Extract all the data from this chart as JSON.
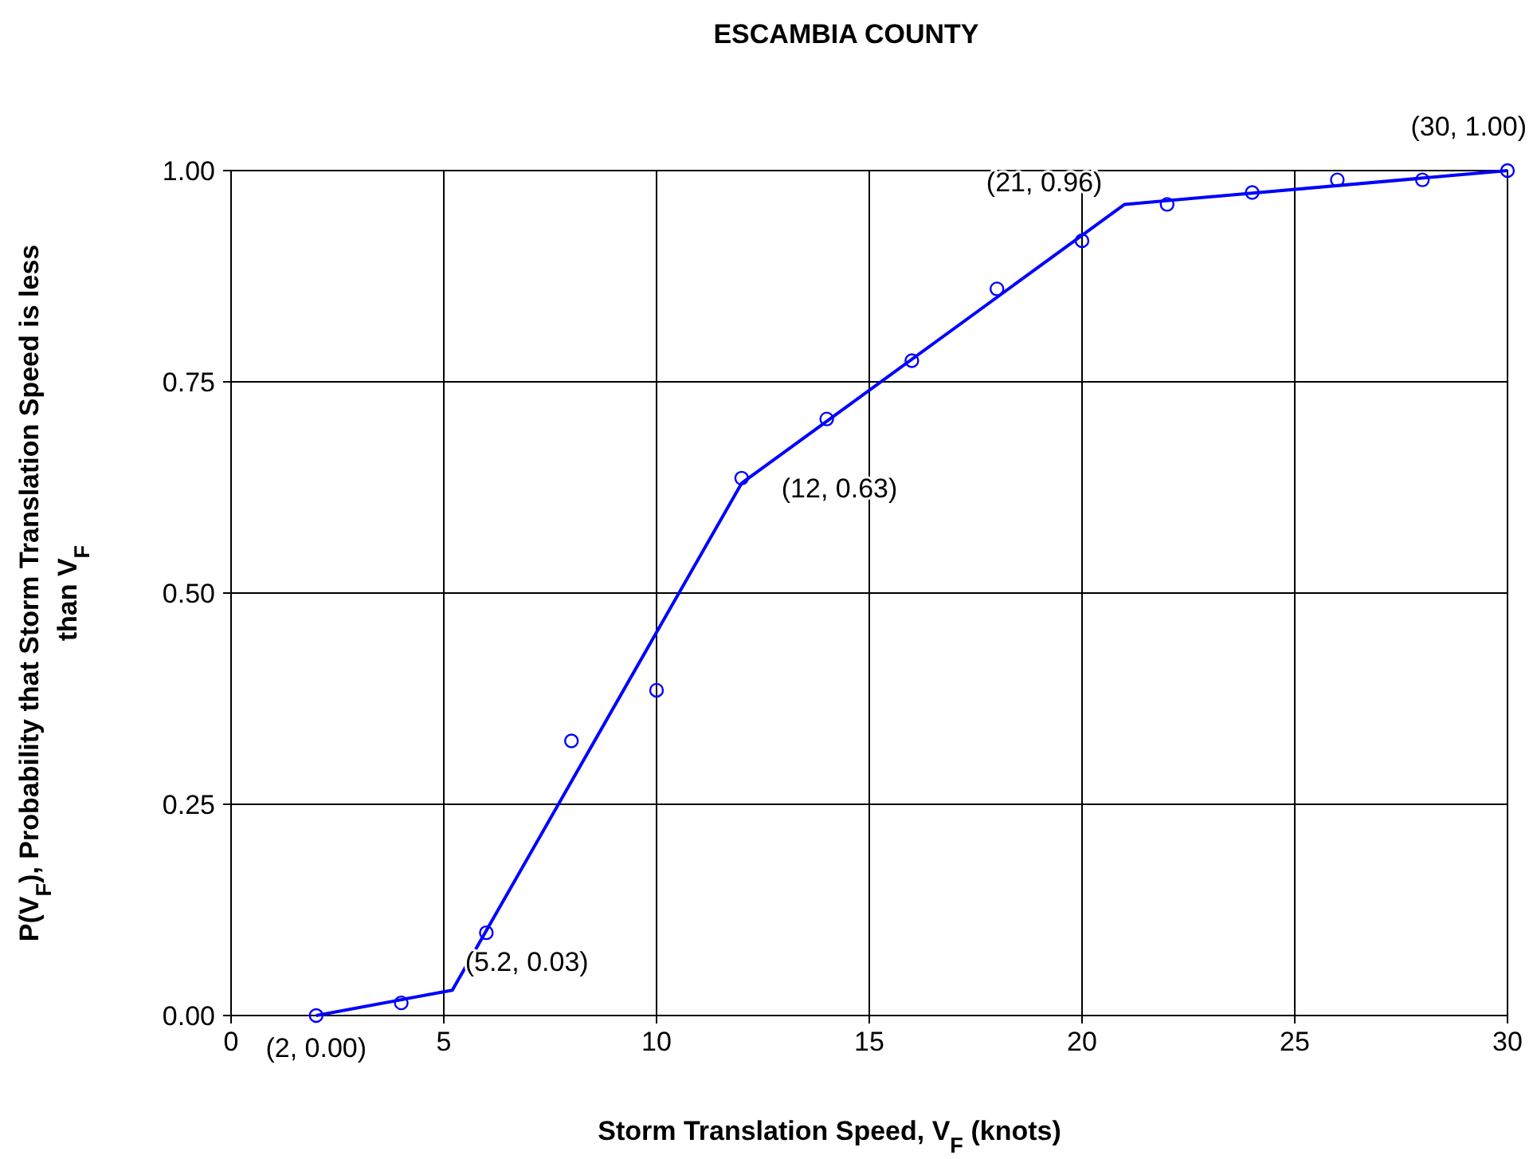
{
  "chart_data": {
    "type": "scatter",
    "title": "ESCAMBIA    COUNTY",
    "xlabel": "Storm Translation Speed,  V$_{F}$ (knots)",
    "ylabel": "P(V$_{F}$), Probability that Storm Translation Speed is less than V$_{F}$",
    "x": [
      2,
      4,
      6,
      8,
      10,
      12,
      14,
      16,
      18,
      20,
      22,
      24,
      26,
      28,
      30
    ],
    "series": [
      {
        "color": "#0000ff",
        "marker": "circle",
        "values": [
          0,
          0.015,
          0.098,
          0.325,
          0.385,
          0.636,
          0.706,
          0.775,
          0.86,
          0.917,
          0.96,
          0.974,
          0.989,
          0.989,
          1.0
        ]
      },
      {
        "type": "line",
        "color": "#0000ff",
        "marker": "none",
        "line_style": "solid",
        "x": [
          2,
          5.2,
          12,
          21,
          30
        ],
        "values": [
          0,
          0.03,
          0.63,
          0.96,
          1.0
        ]
      }
    ],
    "annotations": [
      {
        "text": "(2, 0.00)",
        "x": 2,
        "y": 0
      },
      {
        "text": "(5.2, 0.03)",
        "x": 5.2,
        "y": 0.03
      },
      {
        "text": "(12, 0.63)",
        "x": 12,
        "y": 0.63
      },
      {
        "text": "(21, 0.96)",
        "x": 21,
        "y": 0.96
      },
      {
        "text": "(30, 1.00)",
        "x": 30,
        "y": 1.0
      }
    ],
    "xlim": [
      0,
      30
    ],
    "xticks": [
      0,
      5,
      10,
      15,
      20,
      25,
      30
    ],
    "ylim": [
      0,
      1
    ],
    "yticks": [
      {
        "value": 0,
        "label": "0.00"
      },
      {
        "value": 0.25,
        "label": "0.25"
      },
      {
        "value": 0.5,
        "label": "0.50"
      },
      {
        "value": 0.75,
        "label": "0.75"
      },
      {
        "value": 1,
        "label": "1.00"
      }
    ],
    "grid": true
  }
}
